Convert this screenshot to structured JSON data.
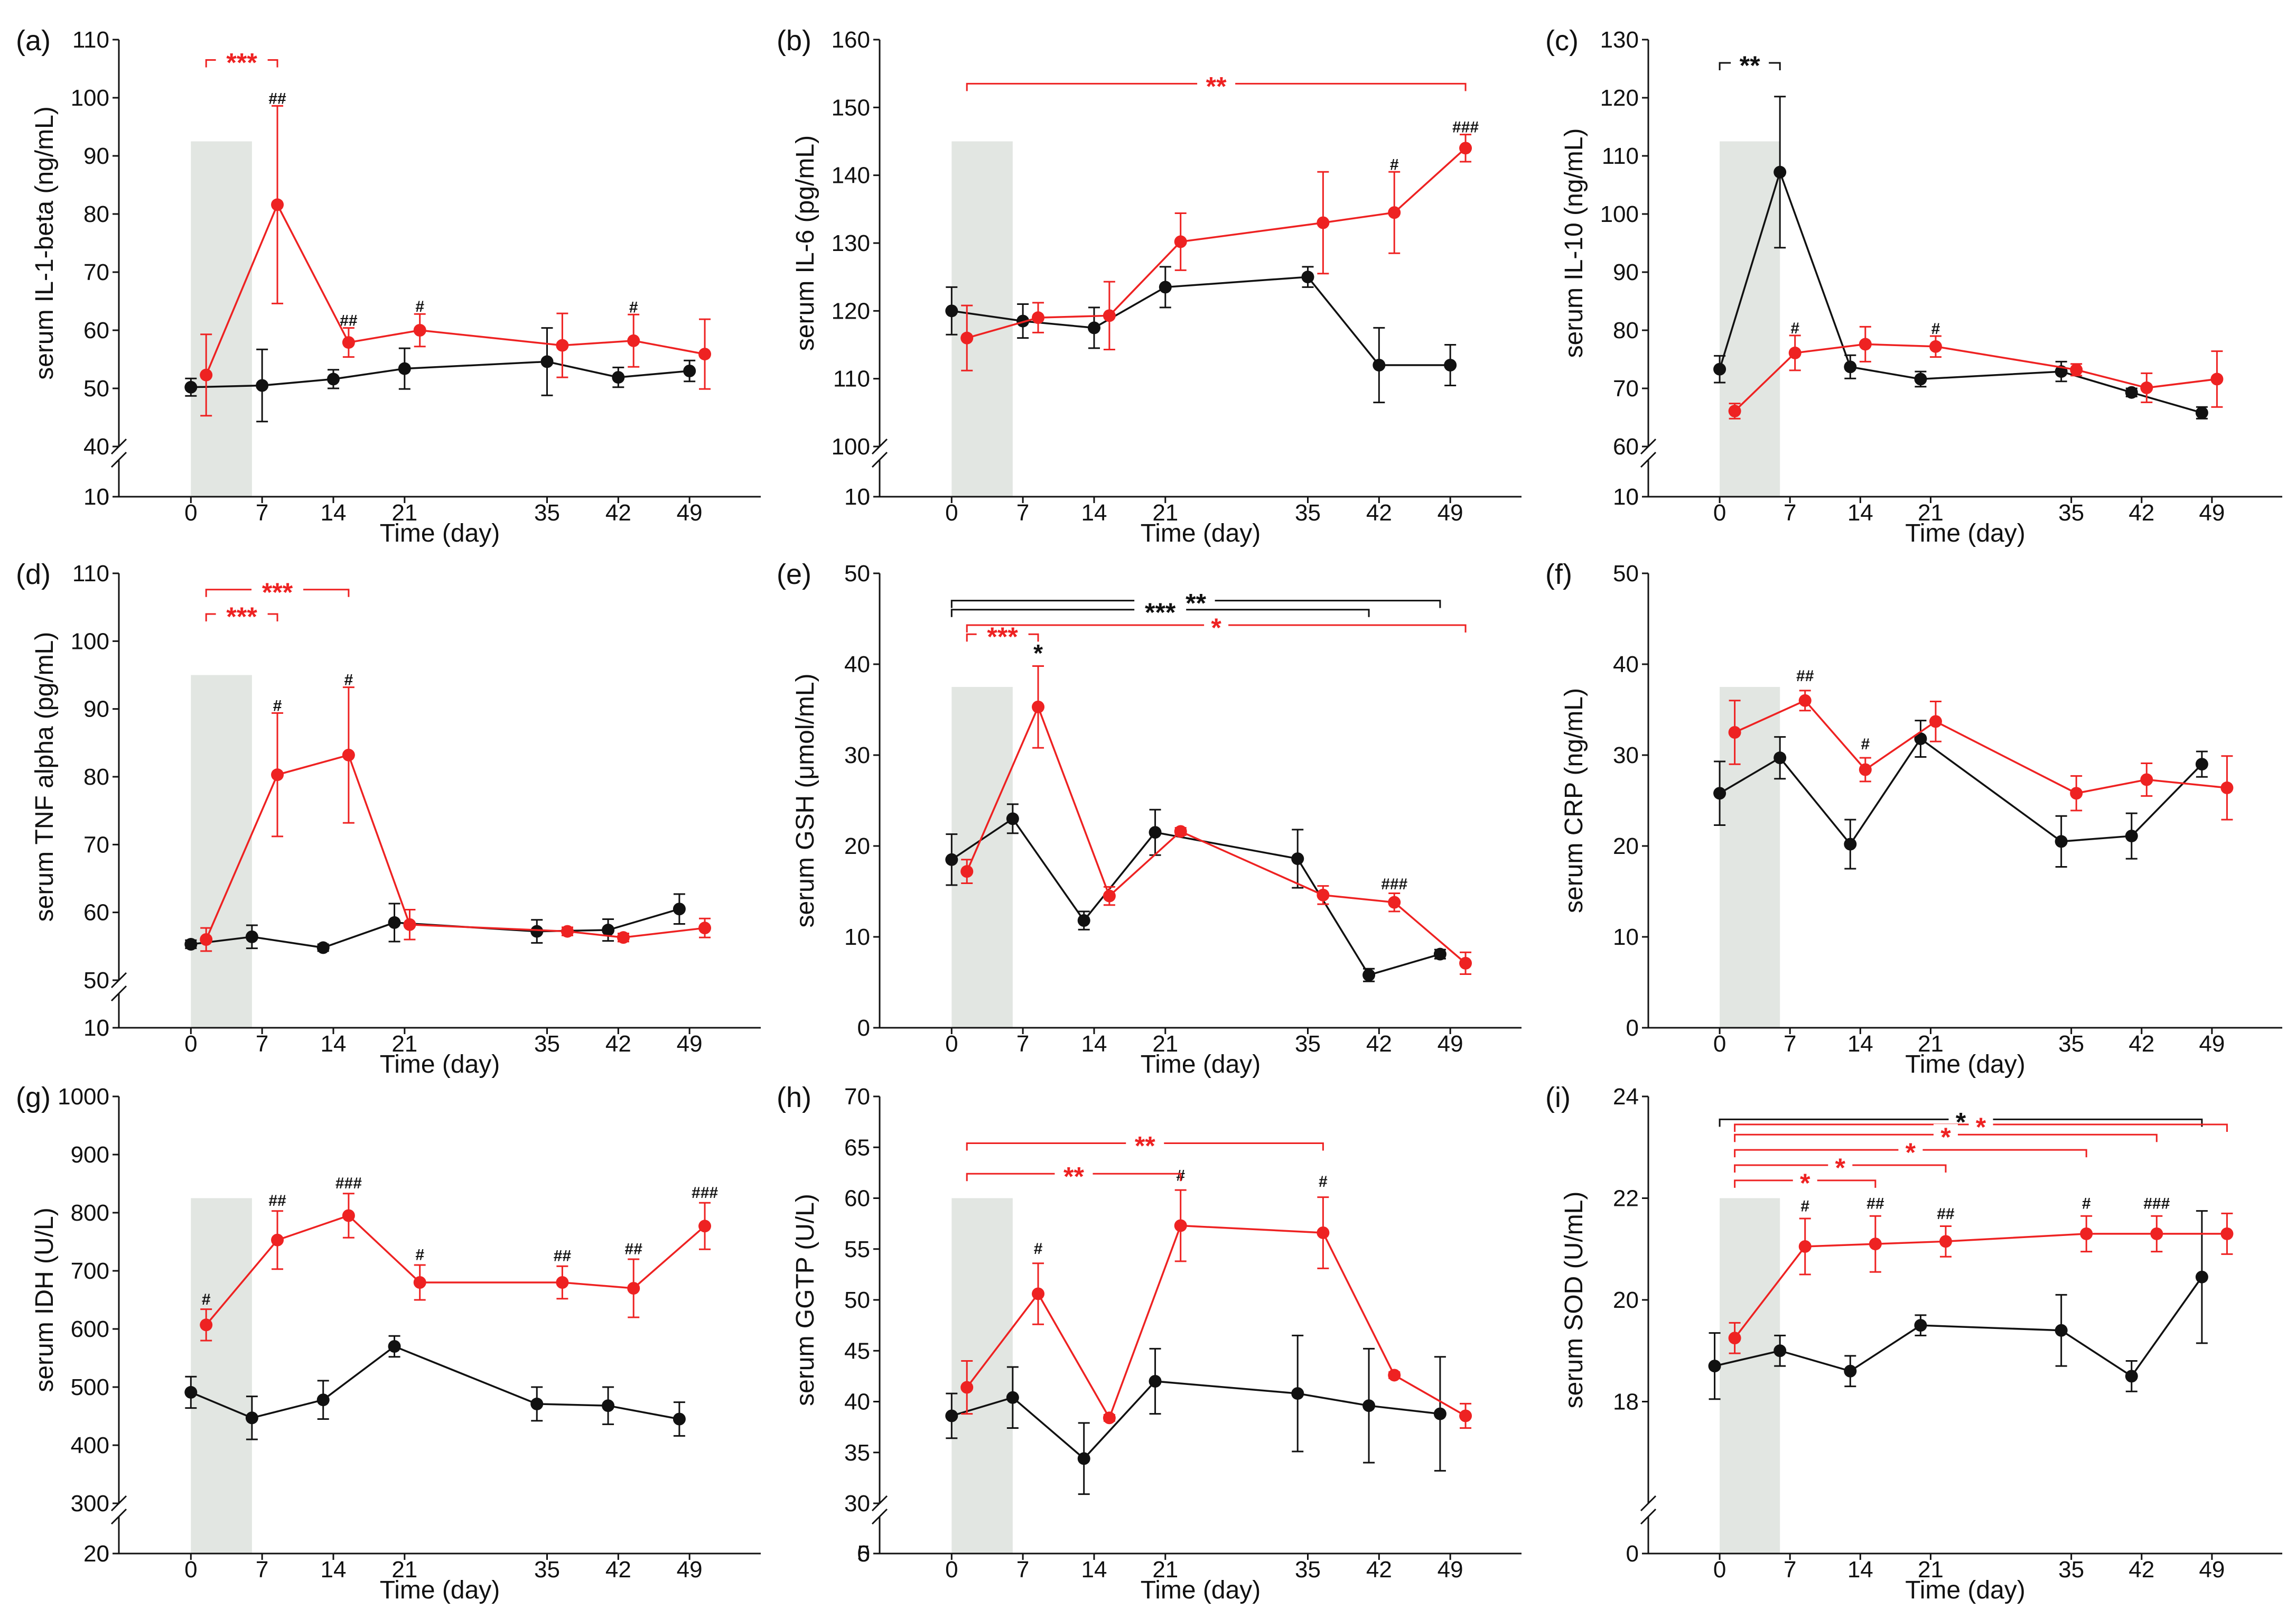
{
  "figure": {
    "colors": {
      "control": "#111111",
      "treatment": "#ee2222",
      "shade": "#e2e6e2"
    },
    "xlabel": "Time (day)"
  },
  "chart_data": [
    {
      "id": "a",
      "type": "line",
      "panel_label": "(a)",
      "ylabel": "serum IL-1-beta (ng/mL)",
      "xlabel": "Time (day)",
      "xlim": [
        -5,
        56
      ],
      "xticks": [
        0,
        7,
        14,
        21,
        35,
        42,
        49
      ],
      "ylim": [
        40,
        110
      ],
      "yticks": [
        40,
        50,
        60,
        70,
        80,
        90,
        100,
        110
      ],
      "yticks_below_break": [
        0,
        10
      ],
      "shade": [
        0,
        6
      ],
      "series": [
        {
          "name": "control",
          "x": [
            0,
            7,
            14,
            21,
            35,
            42,
            49
          ],
          "y": [
            50.2,
            50.5,
            51.6,
            53.4,
            54.6,
            51.9,
            53.0
          ],
          "err": [
            1.5,
            6.2,
            1.6,
            3.5,
            5.8,
            1.7,
            1.8
          ]
        },
        {
          "name": "treatment",
          "x": [
            1.5,
            8.5,
            15.5,
            22.5,
            36.5,
            43.5,
            50.5
          ],
          "y": [
            52.3,
            81.6,
            57.9,
            60.0,
            57.4,
            58.2,
            55.9
          ],
          "err": [
            7.0,
            17.0,
            2.5,
            2.8,
            5.5,
            4.5,
            6.0
          ]
        }
      ],
      "annotations": [
        {
          "x": 8.5,
          "y": 98.6,
          "text": "##"
        },
        {
          "x": 15.5,
          "y": 60.4,
          "text": "##"
        },
        {
          "x": 22.5,
          "y": 62.8,
          "text": "#"
        },
        {
          "x": 43.5,
          "y": 62.7,
          "text": "#"
        }
      ],
      "brackets": [
        {
          "x1": 1.5,
          "x2": 8.5,
          "y": 106.5,
          "label": "***",
          "color": "treatment"
        }
      ]
    },
    {
      "id": "b",
      "type": "line",
      "panel_label": "(b)",
      "ylabel": "serum IL-6 (pg/mL)",
      "xlabel": "Time (day)",
      "xlim": [
        -5,
        56
      ],
      "xticks": [
        0,
        7,
        14,
        21,
        35,
        42,
        49
      ],
      "ylim": [
        100,
        160
      ],
      "yticks": [
        100,
        110,
        120,
        130,
        140,
        150,
        160
      ],
      "yticks_below_break": [
        0,
        10
      ],
      "shade": [
        0,
        6
      ],
      "series": [
        {
          "name": "control",
          "x": [
            0,
            7,
            14,
            21,
            35,
            42,
            49
          ],
          "y": [
            120.0,
            118.5,
            117.5,
            123.5,
            125.0,
            112.0,
            112.0
          ],
          "err": [
            3.5,
            2.5,
            3.0,
            3.0,
            1.5,
            5.5,
            3.0
          ]
        },
        {
          "name": "treatment",
          "x": [
            1.5,
            8.5,
            15.5,
            22.5,
            36.5,
            43.5,
            50.5
          ],
          "y": [
            116.0,
            119.0,
            119.3,
            130.2,
            133.0,
            134.5,
            144.0
          ],
          "err": [
            4.8,
            2.2,
            5.0,
            4.2,
            7.5,
            6.0,
            2.0
          ]
        }
      ],
      "annotations": [
        {
          "x": 43.5,
          "y": 140.5,
          "text": "#"
        },
        {
          "x": 50.5,
          "y": 146.0,
          "text": "###"
        }
      ],
      "brackets": [
        {
          "x1": 1.5,
          "x2": 50.5,
          "y": 153.5,
          "label": "**",
          "color": "treatment"
        }
      ]
    },
    {
      "id": "c",
      "type": "line",
      "panel_label": "(c)",
      "ylabel": "serum IL-10 (ng/mL)",
      "xlabel": "Time (day)",
      "xlim": [
        -5,
        56
      ],
      "xticks": [
        0,
        7,
        14,
        21,
        35,
        42,
        49
      ],
      "ylim": [
        60,
        130
      ],
      "yticks": [
        60,
        70,
        80,
        90,
        100,
        110,
        120,
        130
      ],
      "yticks_below_break": [
        0,
        10
      ],
      "shade": [
        0,
        6
      ],
      "series": [
        {
          "name": "control",
          "x": [
            0,
            6,
            13,
            20,
            34,
            41,
            48
          ],
          "y": [
            73.3,
            107.2,
            73.7,
            71.6,
            72.9,
            69.3,
            65.8
          ],
          "err": [
            2.3,
            13.0,
            2.0,
            1.3,
            1.7,
            0.7,
            1.0
          ]
        },
        {
          "name": "treatment",
          "x": [
            1.5,
            7.5,
            14.5,
            21.5,
            35.5,
            42.5,
            49.5
          ],
          "y": [
            66.1,
            76.1,
            77.6,
            77.2,
            73.2,
            70.1,
            71.6
          ],
          "err": [
            1.3,
            3.0,
            3.0,
            1.8,
            1.0,
            2.5,
            4.8
          ]
        }
      ],
      "annotations": [
        {
          "x": 7.5,
          "y": 79.1,
          "text": "#"
        },
        {
          "x": 21.5,
          "y": 79.0,
          "text": "#"
        }
      ],
      "brackets": [
        {
          "x1": 0,
          "x2": 6,
          "y": 126.0,
          "label": "**",
          "color": "control"
        }
      ]
    },
    {
      "id": "d",
      "type": "line",
      "panel_label": "(d)",
      "ylabel": "serum TNF alpha (pg/mL)",
      "xlabel": "Time (day)",
      "xlim": [
        -5,
        56
      ],
      "xticks": [
        0,
        7,
        14,
        21,
        35,
        42,
        49
      ],
      "ylim": [
        50,
        110
      ],
      "yticks": [
        50,
        60,
        70,
        80,
        90,
        100,
        110
      ],
      "yticks_below_break": [
        0,
        10
      ],
      "shade": [
        0,
        6
      ],
      "series": [
        {
          "name": "control",
          "x": [
            0,
            6,
            13,
            20,
            34,
            41,
            48
          ],
          "y": [
            55.3,
            56.4,
            54.8,
            58.5,
            57.2,
            57.4,
            60.5
          ],
          "err": [
            0.6,
            1.7,
            0.5,
            2.8,
            1.7,
            1.6,
            2.2
          ]
        },
        {
          "name": "treatment",
          "x": [
            1.5,
            8.5,
            15.5,
            21.5,
            37,
            42.5,
            50.5
          ],
          "y": [
            56.0,
            80.3,
            83.2,
            58.2,
            57.2,
            56.3,
            57.7
          ],
          "err": [
            1.7,
            9.1,
            10.0,
            2.2,
            0.6,
            0.6,
            1.4
          ]
        }
      ],
      "annotations": [
        {
          "x": 8.5,
          "y": 89.4,
          "text": "#"
        },
        {
          "x": 15.5,
          "y": 93.2,
          "text": "#"
        }
      ],
      "brackets": [
        {
          "x1": 1.5,
          "x2": 8.5,
          "y": 104.0,
          "label": "***",
          "color": "treatment"
        },
        {
          "x1": 1.5,
          "x2": 15.5,
          "y": 107.6,
          "label": "***",
          "color": "treatment"
        }
      ]
    },
    {
      "id": "e",
      "type": "line",
      "panel_label": "(e)",
      "ylabel": "serum GSH (μmol/mL)",
      "xlabel": "Time (day)",
      "xlim": [
        -5,
        56
      ],
      "xticks": [
        0,
        7,
        14,
        21,
        35,
        42,
        49
      ],
      "ylim": [
        0,
        50
      ],
      "yticks": [
        0,
        10,
        20,
        30,
        40,
        50
      ],
      "yticks_below_break": [],
      "shade": [
        0,
        6
      ],
      "series": [
        {
          "name": "control",
          "x": [
            0,
            6,
            13,
            20,
            34,
            41,
            48
          ],
          "y": [
            18.5,
            23.0,
            11.8,
            21.5,
            18.6,
            5.8,
            8.1
          ],
          "err": [
            2.8,
            1.6,
            1.0,
            2.5,
            3.2,
            0.7,
            0.5
          ]
        },
        {
          "name": "treatment",
          "x": [
            1.5,
            8.5,
            15.5,
            22.5,
            36.5,
            43.5,
            50.5
          ],
          "y": [
            17.2,
            35.3,
            14.5,
            21.6,
            14.6,
            13.8,
            7.1
          ],
          "err": [
            1.3,
            4.5,
            1.0,
            0.4,
            1.0,
            1.0,
            1.2
          ]
        }
      ],
      "annotations": [
        {
          "x": 43.5,
          "y": 15.0,
          "text": "###"
        },
        {
          "x": 8.5,
          "y": 40.3,
          "text": "*"
        }
      ],
      "brackets": [
        {
          "x1": 0,
          "x2": 48,
          "y": 47.0,
          "label": "**",
          "color": "control"
        },
        {
          "x1": 0,
          "x2": 41,
          "y": 46.0,
          "label": "***",
          "color": "control"
        },
        {
          "x1": 1.5,
          "x2": 8.5,
          "y": 43.3,
          "label": "***",
          "color": "treatment"
        },
        {
          "x1": 1.5,
          "x2": 50.5,
          "y": 44.3,
          "label": "*",
          "color": "treatment"
        }
      ]
    },
    {
      "id": "f",
      "type": "line",
      "panel_label": "(f)",
      "ylabel": "serum CRP (ng/mL)",
      "xlabel": "Time (day)",
      "xlim": [
        -5,
        56
      ],
      "xticks": [
        0,
        7,
        14,
        21,
        35,
        42,
        49
      ],
      "ylim": [
        0,
        50
      ],
      "yticks": [
        0,
        10,
        20,
        30,
        40,
        50
      ],
      "yticks_below_break": [],
      "shade": [
        0,
        6
      ],
      "series": [
        {
          "name": "control",
          "x": [
            0,
            6,
            13,
            20,
            34,
            41,
            48
          ],
          "y": [
            25.8,
            29.7,
            20.2,
            31.8,
            20.5,
            21.1,
            29.0
          ],
          "err": [
            3.5,
            2.3,
            2.7,
            2.0,
            2.8,
            2.5,
            1.4
          ]
        },
        {
          "name": "treatment",
          "x": [
            1.5,
            8.5,
            14.5,
            21.5,
            35.5,
            42.5,
            50.5
          ],
          "y": [
            32.5,
            36.0,
            28.4,
            33.7,
            25.8,
            27.3,
            26.4
          ],
          "err": [
            3.5,
            1.1,
            1.3,
            2.2,
            1.9,
            1.8,
            3.5
          ]
        }
      ],
      "annotations": [
        {
          "x": 8.5,
          "y": 37.9,
          "text": "##"
        },
        {
          "x": 14.5,
          "y": 30.4,
          "text": "#"
        }
      ],
      "brackets": []
    },
    {
      "id": "g",
      "type": "line",
      "panel_label": "(g)",
      "ylabel": "serum IDH (U/L)",
      "xlabel": "Time (day)",
      "xlim": [
        -5,
        56
      ],
      "xticks": [
        0,
        7,
        14,
        21,
        35,
        42,
        49
      ],
      "ylim": [
        300,
        1000
      ],
      "yticks": [
        300,
        400,
        500,
        600,
        700,
        800,
        900,
        1000
      ],
      "yticks_below_break": [
        0,
        20
      ],
      "shade": [
        0,
        6
      ],
      "series": [
        {
          "name": "control",
          "x": [
            0,
            6,
            13,
            20,
            34,
            41,
            48
          ],
          "y": [
            491,
            447,
            478,
            570,
            471,
            468,
            445
          ],
          "err": [
            27,
            37,
            33,
            18,
            29,
            32,
            29
          ]
        },
        {
          "name": "treatment",
          "x": [
            1.5,
            8.5,
            15.5,
            22.5,
            36.5,
            43.5,
            50.5
          ],
          "y": [
            607,
            753,
            795,
            680,
            680,
            670,
            777
          ],
          "err": [
            27,
            50,
            38,
            30,
            28,
            50,
            40
          ]
        }
      ],
      "annotations": [
        {
          "x": 1.5,
          "y": 638,
          "text": "#"
        },
        {
          "x": 8.5,
          "y": 808,
          "text": "##"
        },
        {
          "x": 15.5,
          "y": 838,
          "text": "###"
        },
        {
          "x": 22.5,
          "y": 715,
          "text": "#"
        },
        {
          "x": 36.5,
          "y": 713,
          "text": "##"
        },
        {
          "x": 43.5,
          "y": 725,
          "text": "##"
        },
        {
          "x": 50.5,
          "y": 822,
          "text": "###"
        }
      ],
      "brackets": []
    },
    {
      "id": "h",
      "type": "line",
      "panel_label": "(h)",
      "ylabel": "serum GGTP (U/L)",
      "xlabel": "Time (day)",
      "xlim": [
        -5,
        56
      ],
      "xticks": [
        0,
        7,
        14,
        21,
        35,
        42,
        49
      ],
      "ylim": [
        30,
        70
      ],
      "yticks": [
        30,
        35,
        40,
        45,
        50,
        55,
        60,
        65,
        70
      ],
      "yticks_below_break": [
        0,
        5
      ],
      "shade": [
        0,
        6
      ],
      "series": [
        {
          "name": "control",
          "x": [
            0,
            6,
            13,
            20,
            34,
            41,
            48
          ],
          "y": [
            38.6,
            40.4,
            34.4,
            42.0,
            40.8,
            39.6,
            38.8
          ],
          "err": [
            2.2,
            3.0,
            3.5,
            3.2,
            5.7,
            5.6,
            5.6
          ]
        },
        {
          "name": "treatment",
          "x": [
            1.5,
            8.5,
            15.5,
            22.5,
            36.5,
            43.5,
            50.5
          ],
          "y": [
            41.4,
            50.6,
            38.4,
            57.3,
            56.6,
            42.6,
            38.6
          ],
          "err": [
            2.6,
            3.0,
            0.3,
            3.5,
            3.5,
            0.3,
            1.2
          ]
        }
      ],
      "annotations": [
        {
          "x": 8.5,
          "y": 54.3,
          "text": "#"
        },
        {
          "x": 22.5,
          "y": 61.5,
          "text": "#"
        },
        {
          "x": 36.5,
          "y": 60.9,
          "text": "#"
        }
      ],
      "brackets": [
        {
          "x1": 1.5,
          "x2": 22.5,
          "y": 62.4,
          "label": "**",
          "color": "treatment"
        },
        {
          "x1": 1.5,
          "x2": 36.5,
          "y": 65.4,
          "label": "**",
          "color": "treatment"
        }
      ]
    },
    {
      "id": "i",
      "type": "line",
      "panel_label": "(i)",
      "ylabel": "serum SOD (U/mL)",
      "xlabel": "Time (day)",
      "xlim": [
        -5,
        56
      ],
      "xticks": [
        0,
        7,
        14,
        21,
        35,
        42,
        49
      ],
      "ylim": [
        16,
        24
      ],
      "yticks": [
        18,
        20,
        22,
        24
      ],
      "yticks_below_break": [
        0
      ],
      "shade": [
        0,
        6
      ],
      "series": [
        {
          "name": "control",
          "x": [
            -0.5,
            6,
            13,
            20,
            34,
            41,
            48
          ],
          "y": [
            18.7,
            19.0,
            18.6,
            19.5,
            19.4,
            18.5,
            20.45
          ],
          "err": [
            0.65,
            0.3,
            0.3,
            0.2,
            0.7,
            0.3,
            1.3
          ]
        },
        {
          "name": "treatment",
          "x": [
            1.5,
            8.5,
            15.5,
            22.5,
            36.5,
            43.5,
            50.5
          ],
          "y": [
            19.25,
            21.05,
            21.1,
            21.15,
            21.3,
            21.3,
            21.3
          ],
          "err": [
            0.3,
            0.55,
            0.55,
            0.3,
            0.35,
            0.35,
            0.4
          ]
        }
      ],
      "annotations": [
        {
          "x": 8.5,
          "y": 21.7,
          "text": "#"
        },
        {
          "x": 15.5,
          "y": 21.75,
          "text": "##"
        },
        {
          "x": 22.5,
          "y": 21.55,
          "text": "##"
        },
        {
          "x": 36.5,
          "y": 21.75,
          "text": "#"
        },
        {
          "x": 43.5,
          "y": 21.75,
          "text": "###"
        }
      ],
      "brackets": [
        {
          "x1": 0,
          "x2": 48,
          "y": 23.55,
          "label": "*",
          "color": "control"
        },
        {
          "x1": 1.5,
          "x2": 50.5,
          "y": 23.45,
          "label": "*",
          "color": "treatment"
        },
        {
          "x1": 1.5,
          "x2": 43.5,
          "y": 23.25,
          "label": "*",
          "color": "treatment"
        },
        {
          "x1": 1.5,
          "x2": 36.5,
          "y": 22.95,
          "label": "*",
          "color": "treatment"
        },
        {
          "x1": 1.5,
          "x2": 22.5,
          "y": 22.65,
          "label": "*",
          "color": "treatment"
        },
        {
          "x1": 1.5,
          "x2": 15.5,
          "y": 22.35,
          "label": "*",
          "color": "treatment"
        }
      ]
    }
  ]
}
